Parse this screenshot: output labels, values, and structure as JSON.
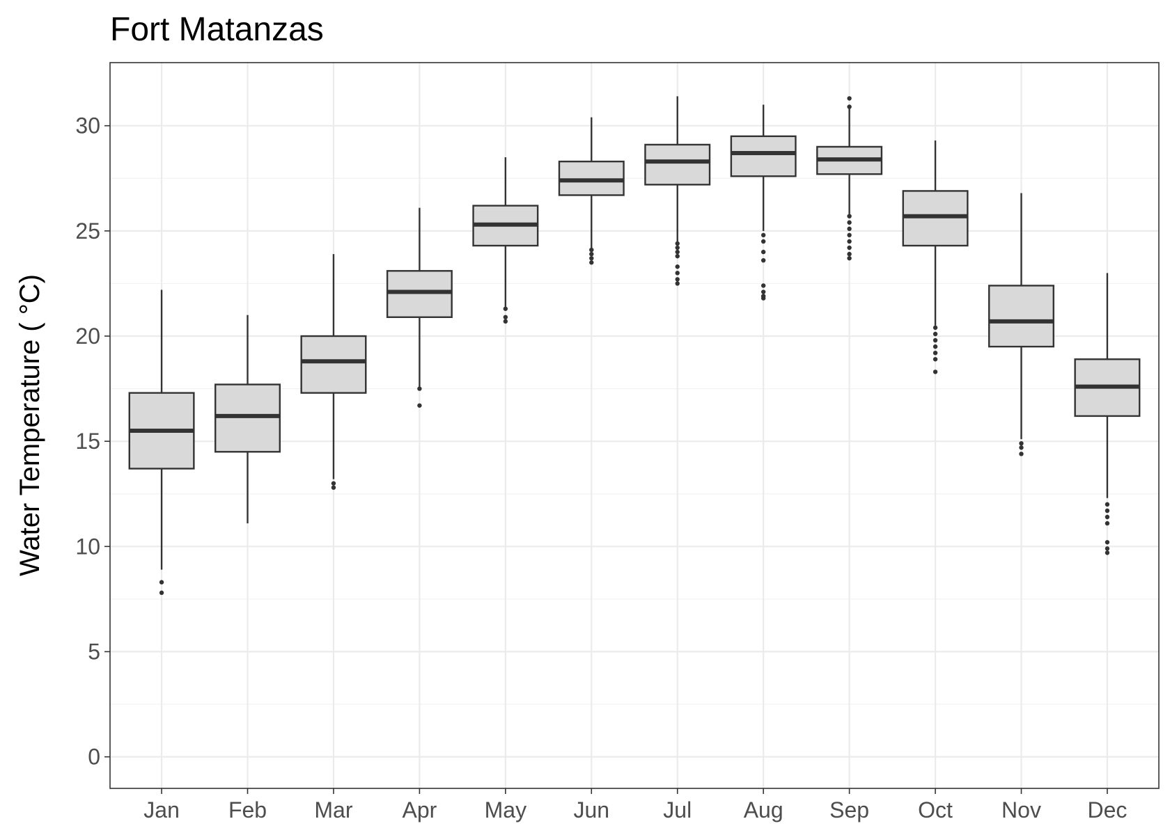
{
  "chart_data": {
    "type": "box",
    "title": "Fort Matanzas",
    "xlabel": "",
    "ylabel": "Water Temperature ( °C)",
    "ylim": [
      -1.5,
      33
    ],
    "yticks": [
      0,
      5,
      10,
      15,
      20,
      25,
      30
    ],
    "grid": true,
    "categories": [
      "Jan",
      "Feb",
      "Mar",
      "Apr",
      "May",
      "Jun",
      "Jul",
      "Aug",
      "Sep",
      "Oct",
      "Nov",
      "Dec"
    ],
    "boxes": [
      {
        "min": 8.9,
        "q1": 13.7,
        "median": 15.5,
        "q3": 17.3,
        "max": 22.2,
        "outliers": [
          8.3,
          7.8
        ]
      },
      {
        "min": 11.1,
        "q1": 14.5,
        "median": 16.2,
        "q3": 17.7,
        "max": 21.0,
        "outliers": []
      },
      {
        "min": 13.2,
        "q1": 17.3,
        "median": 18.8,
        "q3": 20.0,
        "max": 23.9,
        "outliers": [
          13.0,
          12.8
        ]
      },
      {
        "min": 17.6,
        "q1": 20.9,
        "median": 22.1,
        "q3": 23.1,
        "max": 26.1,
        "outliers": [
          17.5,
          16.7
        ]
      },
      {
        "min": 21.4,
        "q1": 24.3,
        "median": 25.3,
        "q3": 26.2,
        "max": 28.5,
        "outliers": [
          21.3,
          20.9,
          20.7
        ]
      },
      {
        "min": 24.2,
        "q1": 26.7,
        "median": 27.4,
        "q3": 28.3,
        "max": 30.4,
        "outliers": [
          24.1,
          23.9,
          23.7,
          23.5
        ]
      },
      {
        "min": 24.5,
        "q1": 27.2,
        "median": 28.3,
        "q3": 29.1,
        "max": 31.4,
        "outliers": [
          24.4,
          24.2,
          24.0,
          23.8,
          23.3,
          23.0,
          22.7,
          22.5
        ]
      },
      {
        "min": 25.0,
        "q1": 27.6,
        "median": 28.7,
        "q3": 29.5,
        "max": 31.0,
        "outliers": [
          24.8,
          24.5,
          24.0,
          23.6,
          22.4,
          22.1,
          21.9,
          21.8
        ]
      },
      {
        "min": 25.8,
        "q1": 27.7,
        "median": 28.4,
        "q3": 29.0,
        "max": 30.8,
        "outliers": [
          31.3,
          30.9,
          25.7,
          25.4,
          25.1,
          24.8,
          24.5,
          24.2,
          23.9,
          23.7
        ]
      },
      {
        "min": 20.5,
        "q1": 24.3,
        "median": 25.7,
        "q3": 26.9,
        "max": 29.3,
        "outliers": [
          20.4,
          20.1,
          19.8,
          19.5,
          19.2,
          18.9,
          18.3
        ]
      },
      {
        "min": 15.1,
        "q1": 19.5,
        "median": 20.7,
        "q3": 22.4,
        "max": 26.8,
        "outliers": [
          14.9,
          14.7,
          14.4
        ]
      },
      {
        "min": 12.3,
        "q1": 16.2,
        "median": 17.6,
        "q3": 18.9,
        "max": 23.0,
        "outliers": [
          12.0,
          11.7,
          11.4,
          11.1,
          10.2,
          9.9,
          9.7
        ]
      }
    ]
  }
}
